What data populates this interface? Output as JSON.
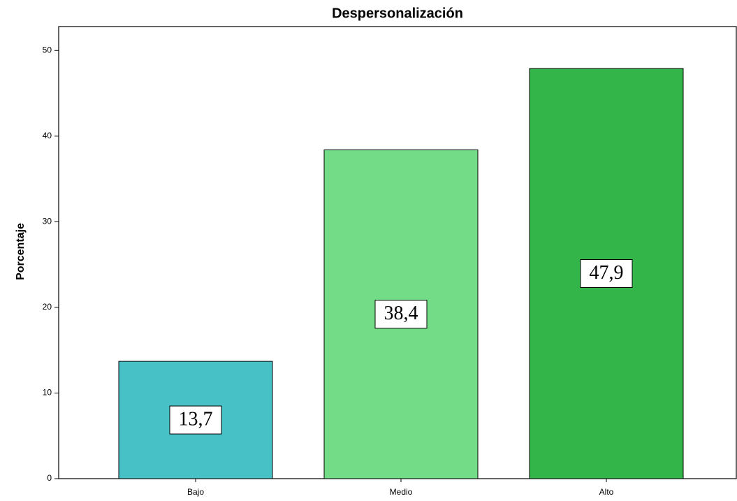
{
  "chart_data": {
    "type": "bar",
    "title": "Despersonalización",
    "ylabel": "Porcentaje",
    "categories": [
      "Bajo",
      "Medio",
      "Alto"
    ],
    "values": [
      13.7,
      38.4,
      47.9
    ],
    "value_labels": [
      "13,7",
      "38,4",
      "47,9"
    ],
    "colors": [
      "#48c1c6",
      "#72dc86",
      "#33b54a"
    ],
    "ylim": [
      0,
      52.8
    ],
    "yticks": [
      0,
      10,
      20,
      30,
      40,
      50
    ],
    "grid": false
  }
}
